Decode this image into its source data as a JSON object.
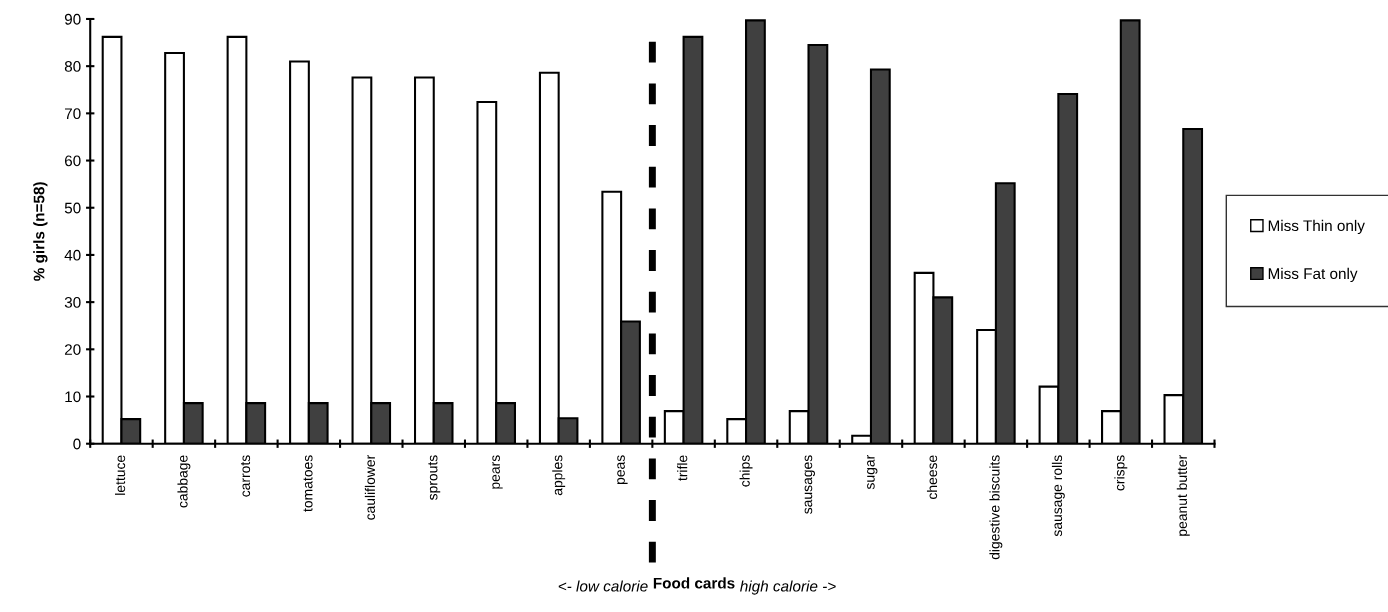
{
  "chart_data": {
    "type": "bar",
    "ylabel": "% girls (n=58)",
    "xlabel": "Food cards",
    "categories": [
      "lettuce",
      "cabbage",
      "carrots",
      "tomatoes",
      "cauliflower",
      "sprouts",
      "pears",
      "apples",
      "peas",
      "trifle",
      "chips",
      "sausages",
      "sugar",
      "cheese",
      "digestive biscuits",
      "sausage rolls",
      "crisps",
      "peanut butter"
    ],
    "series": [
      {
        "name": "Miss Thin only",
        "color": "#ffffff",
        "values": [
          86.2,
          82.8,
          86.2,
          81.0,
          77.6,
          77.6,
          72.4,
          78.6,
          53.4,
          6.9,
          5.2,
          6.9,
          1.7,
          36.2,
          24.1,
          12.1,
          6.9,
          10.3
        ]
      },
      {
        "name": "Miss Fat only",
        "color": "#404040",
        "values": [
          5.2,
          8.6,
          8.6,
          8.6,
          8.6,
          8.6,
          8.6,
          5.4,
          25.9,
          86.2,
          89.7,
          84.5,
          79.3,
          31.0,
          55.2,
          74.1,
          89.7,
          66.7
        ]
      }
    ],
    "ylim": [
      0,
      90
    ],
    "yticks": [
      0,
      10,
      20,
      30,
      40,
      50,
      60,
      70,
      80,
      90
    ],
    "grid": false,
    "legend": "right",
    "annotations": [
      "<- low calorie",
      "high calorie ->"
    ]
  }
}
